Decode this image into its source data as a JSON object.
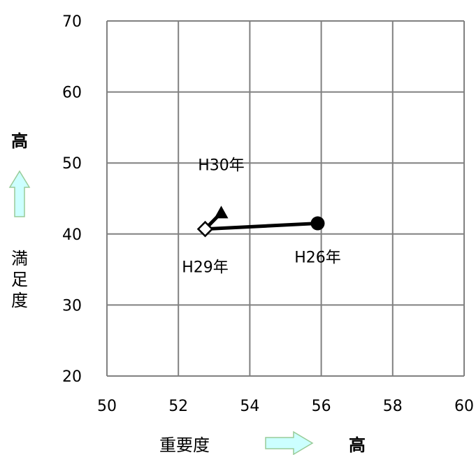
{
  "chart_data": {
    "type": "scatter",
    "title": "",
    "xlabel": "重要度",
    "ylabel": "満足度",
    "x_high_label": "高",
    "y_high_label": "高",
    "xlim": [
      50,
      60
    ],
    "ylim": [
      20,
      70
    ],
    "xticks": [
      50,
      52,
      54,
      56,
      58,
      60
    ],
    "yticks": [
      20,
      30,
      40,
      50,
      60,
      70
    ],
    "grid": true,
    "points": [
      {
        "label": "H26年",
        "x": 55.9,
        "y": 41.5,
        "marker": "circle"
      },
      {
        "label": "H29年",
        "x": 52.75,
        "y": 40.7,
        "marker": "diamond"
      },
      {
        "label": "H30年",
        "x": 53.2,
        "y": 43.0,
        "marker": "triangle"
      }
    ],
    "line_order": [
      "H26年",
      "H29年",
      "H30年"
    ],
    "colors": {
      "marker": "#000000",
      "grid": "#808080",
      "arrow_fill": "#ccffff",
      "arrow_stroke": "#99cc99"
    }
  }
}
